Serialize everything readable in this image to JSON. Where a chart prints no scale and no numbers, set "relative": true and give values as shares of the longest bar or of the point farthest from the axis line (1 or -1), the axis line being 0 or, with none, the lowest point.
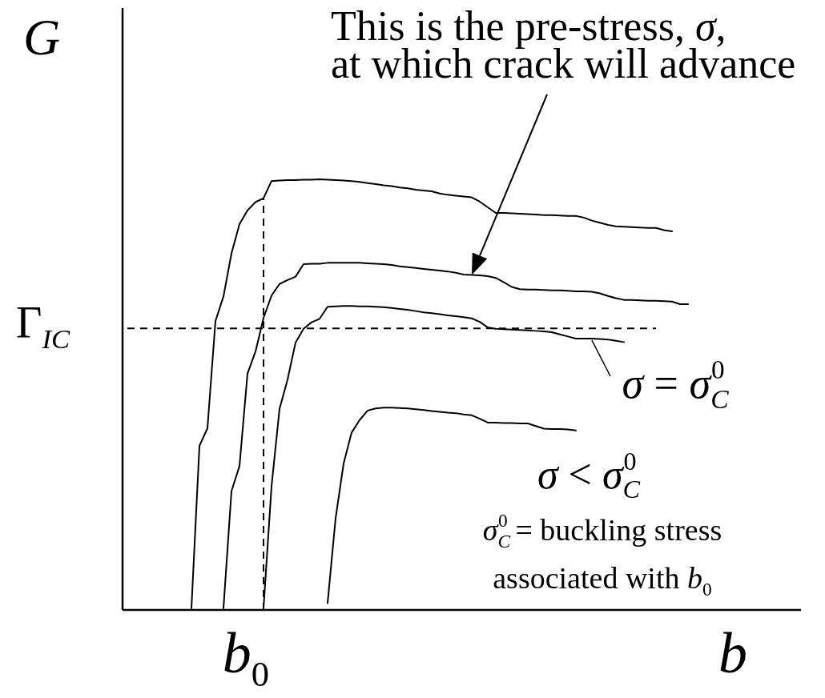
{
  "chart_data": {
    "type": "line",
    "relative": true,
    "xlabel": "b",
    "ylabel": "G",
    "categories": [
      null,
      null,
      null,
      null,
      null,
      null,
      null,
      null,
      null,
      null,
      null,
      null,
      null,
      null,
      null,
      null,
      null,
      null,
      null,
      null,
      null,
      null,
      null,
      null,
      null,
      null,
      null,
      null,
      null,
      null,
      null,
      null,
      null,
      null,
      null,
      null,
      null,
      null,
      null,
      null,
      null,
      null,
      null,
      null,
      null,
      null,
      null,
      null,
      null,
      null,
      null,
      null,
      null,
      null,
      null,
      null,
      null,
      null,
      null,
      null,
      null,
      null,
      null,
      null,
      null,
      null,
      null,
      null,
      null,
      null,
      null,
      null,
      null,
      null,
      null,
      null,
      null,
      null,
      null,
      null,
      null,
      null,
      null,
      null,
      null
    ],
    "series": [
      {
        "color": "#000000",
        "values": [
          null,
          null,
          null,
          null,
          null,
          null,
          null,
          null,
          0.004,
          0.381,
          0.422,
          0.671,
          0.728,
          0.828,
          0.896,
          0.928,
          0.947,
          0.956,
          0.996,
          0.997,
          0.998,
          0.998,
          0.999,
          0.999,
          1.0,
          0.999,
          0.998,
          0.997,
          0.996,
          0.994,
          0.991,
          0.989,
          0.986,
          0.984,
          0.981,
          0.979,
          0.976,
          0.974,
          0.972,
          0.967,
          0.964,
          0.962,
          0.96,
          0.958,
          0.948,
          0.935,
          0.922,
          0.922,
          0.921,
          0.92,
          0.919,
          0.918,
          0.917,
          0.917,
          0.916,
          0.915,
          0.915,
          0.911,
          0.904,
          0.899,
          0.894,
          0.891,
          0.89,
          0.889,
          0.888,
          0.887,
          0.887,
          0.882,
          0.879,
          null,
          null,
          null,
          null,
          null,
          null,
          null,
          null,
          null,
          null,
          null,
          null,
          null,
          null,
          null,
          null
        ]
      },
      {
        "color": "#000000",
        "values": [
          null,
          null,
          null,
          null,
          null,
          null,
          null,
          null,
          null,
          null,
          null,
          null,
          0.004,
          0.276,
          0.334,
          0.549,
          0.6,
          0.678,
          0.73,
          0.757,
          0.766,
          0.774,
          0.803,
          0.804,
          0.804,
          0.806,
          0.806,
          0.806,
          0.806,
          0.806,
          0.805,
          0.804,
          0.803,
          0.801,
          0.798,
          0.796,
          0.794,
          0.792,
          0.79,
          0.788,
          0.786,
          0.783,
          0.779,
          0.778,
          0.777,
          0.775,
          0.771,
          0.761,
          0.75,
          0.745,
          0.744,
          0.744,
          0.743,
          0.742,
          0.742,
          0.741,
          0.74,
          0.74,
          0.739,
          0.735,
          0.729,
          0.724,
          0.72,
          0.72,
          0.719,
          0.718,
          0.718,
          0.717,
          0.716,
          0.71,
          0.71,
          null,
          null,
          null,
          null,
          null,
          null,
          null,
          null,
          null,
          null,
          null,
          null,
          null,
          null
        ]
      },
      {
        "color": "#000000",
        "values": [
          null,
          null,
          null,
          null,
          null,
          null,
          null,
          null,
          null,
          null,
          null,
          null,
          null,
          null,
          null,
          null,
          null,
          0.004,
          0.287,
          0.467,
          0.535,
          0.621,
          0.653,
          0.668,
          0.676,
          0.704,
          0.705,
          0.706,
          0.706,
          0.705,
          0.705,
          0.704,
          0.703,
          0.701,
          0.699,
          0.697,
          0.694,
          0.691,
          0.689,
          0.687,
          0.684,
          0.682,
          0.68,
          0.677,
          0.669,
          0.656,
          0.653,
          0.652,
          0.651,
          0.65,
          0.649,
          0.648,
          0.647,
          0.645,
          0.64,
          0.635,
          0.63,
          0.63,
          0.63,
          0.629,
          0.628,
          0.625,
          0.622,
          null,
          null,
          null,
          null,
          null,
          null,
          null,
          null,
          null,
          null,
          null,
          null,
          null,
          null,
          null,
          null,
          null,
          null,
          null,
          null,
          null,
          null
        ]
      },
      {
        "color": "#000000",
        "values": [
          null,
          null,
          null,
          null,
          null,
          null,
          null,
          null,
          null,
          null,
          null,
          null,
          null,
          null,
          null,
          null,
          null,
          null,
          null,
          null,
          null,
          null,
          null,
          null,
          null,
          0.016,
          0.213,
          0.34,
          0.412,
          0.441,
          0.463,
          0.468,
          0.47,
          0.47,
          0.469,
          0.468,
          0.466,
          0.464,
          0.462,
          0.46,
          0.458,
          0.457,
          0.454,
          0.452,
          0.444,
          0.435,
          0.435,
          0.434,
          0.434,
          0.433,
          0.433,
          0.427,
          0.421,
          0.42,
          0.42,
          0.419,
          0.417,
          null,
          null,
          null,
          null,
          null,
          null,
          null,
          null,
          null,
          null,
          null,
          null,
          null,
          null,
          null,
          null,
          null,
          null,
          null,
          null,
          null,
          null,
          null,
          null,
          null,
          null,
          null,
          null
        ]
      },
      {
        "name": "Γ$_{IC}$",
        "color": "#000000",
        "line_style": "dashed",
        "values": [
          0.654,
          0.654,
          0.654,
          0.654,
          0.654,
          0.654,
          0.654,
          0.654,
          0.654,
          0.654,
          0.654,
          0.654,
          0.654,
          0.654,
          0.654,
          0.654,
          0.654,
          0.654,
          0.654,
          0.654,
          0.654,
          0.654,
          0.654,
          0.654,
          0.654,
          0.654,
          0.654,
          0.654,
          0.654,
          0.654,
          0.654,
          0.654,
          0.654,
          0.654,
          0.654,
          0.654,
          0.654,
          0.654,
          0.654,
          0.654,
          0.654,
          0.654,
          0.654,
          0.654,
          0.654,
          0.654,
          0.654,
          0.654,
          0.654,
          0.654,
          0.654,
          0.654,
          0.654,
          0.654,
          0.654,
          0.654,
          0.654,
          0.654,
          0.654,
          0.654,
          0.654,
          0.654,
          0.654,
          0.654,
          0.654,
          0.654,
          0.654,
          null,
          null,
          null,
          null,
          null,
          null,
          null,
          null,
          null,
          null,
          null,
          null,
          null,
          null,
          null,
          null,
          null,
          null
        ]
      }
    ],
    "annotations": [
      "This is the pre-stress, σ,\nat which crack will advance",
      "σ = σ$_{C}$$^{0}$",
      "σ < σ$_{C}$$^{0}$",
      "σ$_{C}$$^{0}$ = buckling stress\nassociated with b$_{0}$",
      "b$_{0}$"
    ]
  }
}
